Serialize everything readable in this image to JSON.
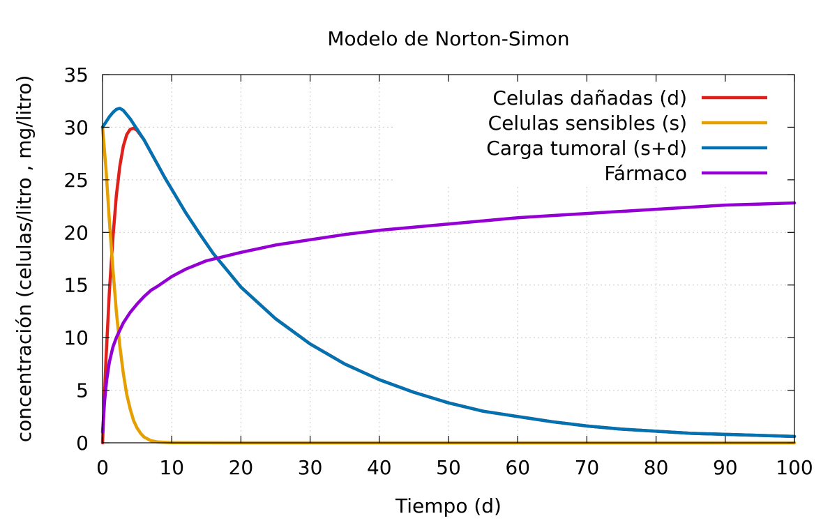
{
  "chart_data": {
    "type": "line",
    "title": "Modelo de Norton-Simon",
    "xlabel": "Tiempo (d)",
    "ylabel": "concentración (celulas/litro , mg/litro)",
    "xlim": [
      0,
      100
    ],
    "ylim": [
      0,
      35
    ],
    "xticks": [
      0,
      10,
      20,
      30,
      40,
      50,
      60,
      70,
      80,
      90,
      100
    ],
    "yticks": [
      0,
      5,
      10,
      15,
      20,
      25,
      30,
      35
    ],
    "grid": true,
    "legend_position": "top-right",
    "series": [
      {
        "name": "Celulas dañadas (d)",
        "color": "#e0201a",
        "points": [
          [
            0,
            0
          ],
          [
            0.5,
            8
          ],
          [
            1,
            14.5
          ],
          [
            1.5,
            19.5
          ],
          [
            2,
            23.5
          ],
          [
            2.5,
            26.3
          ],
          [
            3,
            28.2
          ],
          [
            3.5,
            29.3
          ],
          [
            4,
            29.8
          ],
          [
            4.5,
            29.9
          ],
          [
            5,
            29.7
          ],
          [
            6,
            28.8
          ],
          [
            7,
            27.6
          ],
          [
            8,
            26.4
          ],
          [
            9,
            25.2
          ],
          [
            10,
            24.1
          ],
          [
            12,
            21.9
          ],
          [
            14,
            19.9
          ],
          [
            16,
            18
          ],
          [
            18,
            16.4
          ],
          [
            20,
            14.8
          ],
          [
            25,
            11.8
          ],
          [
            30,
            9.4
          ],
          [
            35,
            7.5
          ],
          [
            40,
            6
          ],
          [
            45,
            4.8
          ],
          [
            50,
            3.8
          ],
          [
            55,
            3
          ],
          [
            60,
            2.5
          ],
          [
            65,
            2
          ],
          [
            70,
            1.6
          ],
          [
            75,
            1.3
          ],
          [
            80,
            1.1
          ],
          [
            85,
            0.9
          ],
          [
            90,
            0.8
          ],
          [
            95,
            0.7
          ],
          [
            100,
            0.6
          ]
        ]
      },
      {
        "name": "Celulas sensibles (s)",
        "color": "#e69f00",
        "points": [
          [
            0,
            30
          ],
          [
            0.5,
            26
          ],
          [
            1,
            21
          ],
          [
            1.5,
            16.5
          ],
          [
            2,
            12.5
          ],
          [
            2.5,
            9.2
          ],
          [
            3,
            6.6
          ],
          [
            3.5,
            4.6
          ],
          [
            4,
            3.2
          ],
          [
            4.5,
            2.1
          ],
          [
            5,
            1.4
          ],
          [
            5.5,
            0.9
          ],
          [
            6,
            0.55
          ],
          [
            7,
            0.2
          ],
          [
            8,
            0.08
          ],
          [
            10,
            0.02
          ],
          [
            20,
            0
          ],
          [
            100,
            0
          ]
        ]
      },
      {
        "name": "Carga tumoral (s+d)",
        "color": "#0072b2",
        "points": [
          [
            0,
            30
          ],
          [
            0.5,
            30.5
          ],
          [
            1,
            31
          ],
          [
            1.5,
            31.4
          ],
          [
            2,
            31.7
          ],
          [
            2.5,
            31.8
          ],
          [
            3,
            31.6
          ],
          [
            3.5,
            31.2
          ],
          [
            4,
            30.8
          ],
          [
            4.5,
            30.3
          ],
          [
            5,
            29.8
          ],
          [
            6,
            28.8
          ],
          [
            7,
            27.6
          ],
          [
            8,
            26.4
          ],
          [
            9,
            25.2
          ],
          [
            10,
            24.1
          ],
          [
            12,
            21.9
          ],
          [
            14,
            19.9
          ],
          [
            16,
            18
          ],
          [
            18,
            16.4
          ],
          [
            20,
            14.8
          ],
          [
            25,
            11.8
          ],
          [
            30,
            9.4
          ],
          [
            35,
            7.5
          ],
          [
            40,
            6
          ],
          [
            45,
            4.8
          ],
          [
            50,
            3.8
          ],
          [
            55,
            3
          ],
          [
            60,
            2.5
          ],
          [
            65,
            2
          ],
          [
            70,
            1.6
          ],
          [
            75,
            1.3
          ],
          [
            80,
            1.1
          ],
          [
            85,
            0.9
          ],
          [
            90,
            0.8
          ],
          [
            95,
            0.7
          ],
          [
            100,
            0.6
          ]
        ]
      },
      {
        "name": "Fármaco",
        "color": "#9400d3",
        "points": [
          [
            0,
            1
          ],
          [
            0.3,
            4
          ],
          [
            0.6,
            6
          ],
          [
            1,
            7.7
          ],
          [
            1.5,
            9.1
          ],
          [
            2,
            10
          ],
          [
            3,
            11.4
          ],
          [
            4,
            12.4
          ],
          [
            5,
            13.2
          ],
          [
            6,
            13.9
          ],
          [
            7,
            14.5
          ],
          [
            8,
            14.9
          ],
          [
            10,
            15.8
          ],
          [
            12,
            16.5
          ],
          [
            15,
            17.3
          ],
          [
            20,
            18.1
          ],
          [
            25,
            18.8
          ],
          [
            30,
            19.3
          ],
          [
            35,
            19.8
          ],
          [
            40,
            20.2
          ],
          [
            45,
            20.5
          ],
          [
            50,
            20.8
          ],
          [
            55,
            21.1
          ],
          [
            60,
            21.4
          ],
          [
            65,
            21.6
          ],
          [
            70,
            21.8
          ],
          [
            75,
            22
          ],
          [
            80,
            22.2
          ],
          [
            85,
            22.4
          ],
          [
            90,
            22.6
          ],
          [
            95,
            22.7
          ],
          [
            100,
            22.8
          ]
        ]
      }
    ]
  }
}
